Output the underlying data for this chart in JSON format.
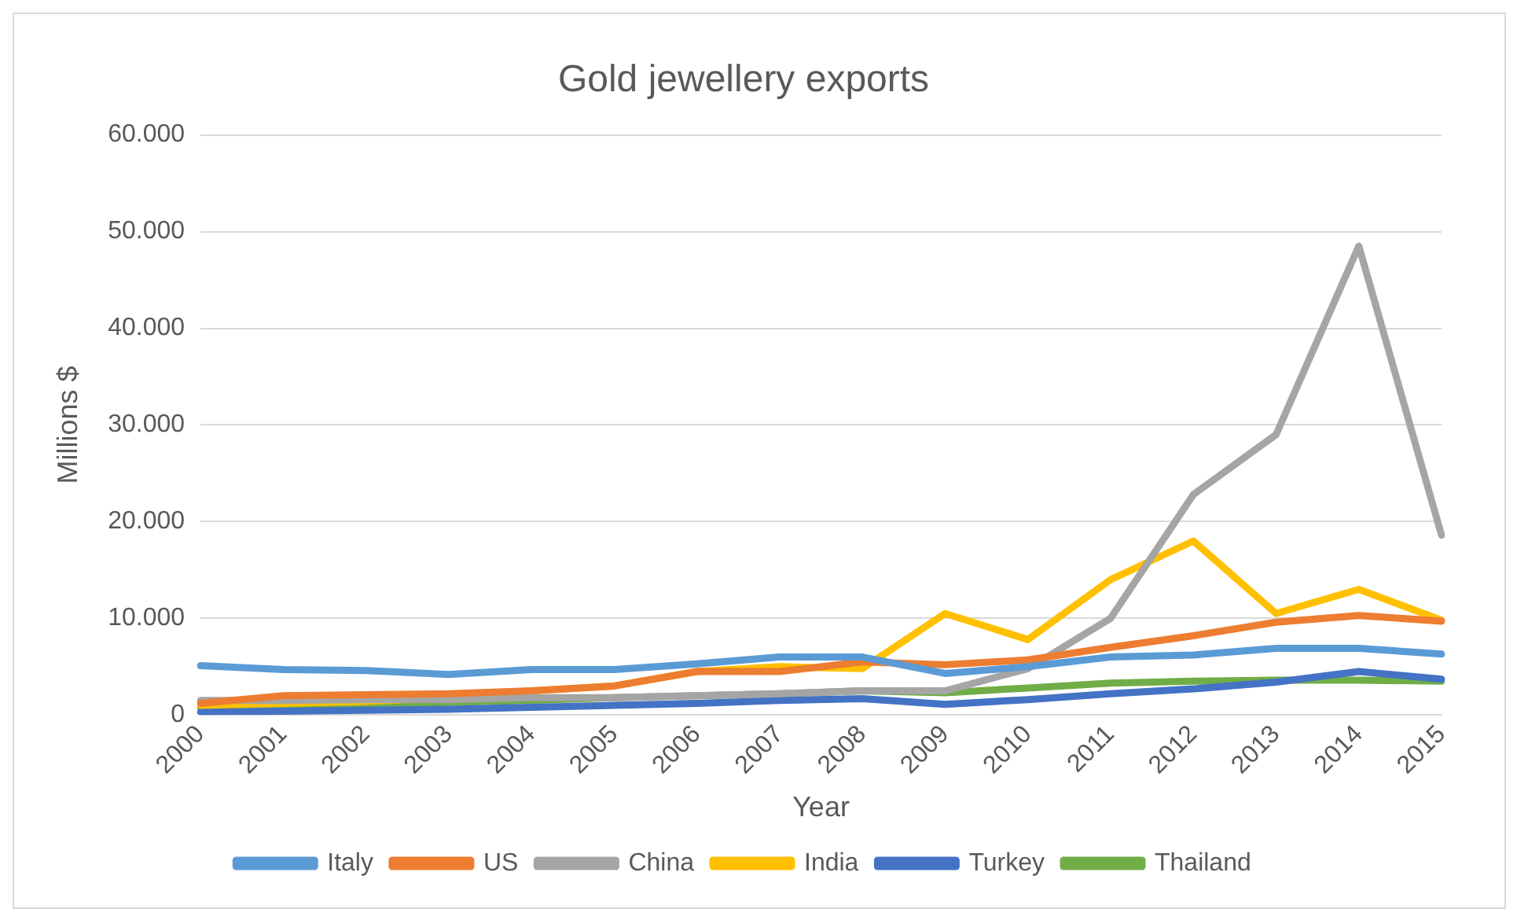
{
  "chart_data": {
    "type": "line",
    "title": "Gold jewellery exports",
    "xlabel": "Year",
    "ylabel": "Millions $",
    "categories": [
      "2000",
      "2001",
      "2002",
      "2003",
      "2004",
      "2005",
      "2006",
      "2007",
      "2008",
      "2009",
      "2010",
      "2011",
      "2012",
      "2013",
      "2014",
      "2015"
    ],
    "series": [
      {
        "name": "Italy",
        "color": "#5b9bd5",
        "values": [
          5100,
          4700,
          4600,
          4200,
          4700,
          4700,
          5300,
          6000,
          6000,
          4300,
          5000,
          6000,
          6200,
          6900,
          6900,
          6300
        ]
      },
      {
        "name": "US",
        "color": "#ed7d31",
        "values": [
          1200,
          2000,
          2100,
          2200,
          2500,
          3000,
          4500,
          4500,
          5500,
          5200,
          5700,
          7000,
          8200,
          9600,
          10300,
          9700
        ]
      },
      {
        "name": "China",
        "color": "#a5a5a5",
        "values": [
          1500,
          1500,
          1600,
          1600,
          1800,
          1800,
          2000,
          2200,
          2500,
          2500,
          4800,
          10000,
          22800,
          29000,
          48500,
          18600
        ]
      },
      {
        "name": "India",
        "color": "#ffc000",
        "values": [
          1000,
          1200,
          1400,
          1800,
          2500,
          3000,
          4500,
          5000,
          4800,
          10500,
          7800,
          14000,
          18000,
          10500,
          13000,
          9800
        ]
      },
      {
        "name": "Turkey",
        "color": "#4472c4",
        "values": [
          300,
          400,
          500,
          600,
          800,
          1000,
          1200,
          1500,
          1700,
          1100,
          1600,
          2200,
          2700,
          3400,
          4500,
          3700
        ]
      },
      {
        "name": "Thailand",
        "color": "#70ad47",
        "values": [
          800,
          1000,
          1100,
          1300,
          1500,
          1800,
          2000,
          2200,
          2500,
          2300,
          2800,
          3300,
          3500,
          3600,
          3600,
          3500
        ]
      }
    ],
    "ylim": [
      0,
      60000
    ],
    "yticks": [
      {
        "value": 0,
        "label": "0"
      },
      {
        "value": 10000,
        "label": "10.000"
      },
      {
        "value": 20000,
        "label": "20.000"
      },
      {
        "value": 30000,
        "label": "30.000"
      },
      {
        "value": 40000,
        "label": "40.000"
      },
      {
        "value": 50000,
        "label": "50.000"
      },
      {
        "value": 60000,
        "label": "60.000"
      }
    ],
    "grid": "y",
    "legend": "bottom",
    "marker": "none",
    "line_style": "solid"
  }
}
